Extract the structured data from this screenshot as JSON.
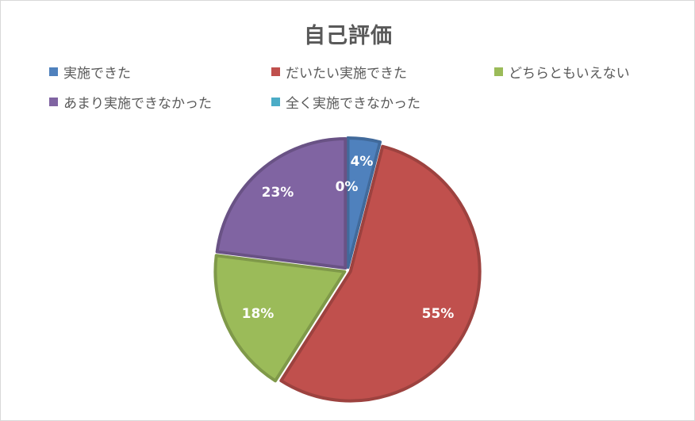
{
  "chart_data": {
    "type": "pie",
    "title": "自己評価",
    "legend_position": "top",
    "categories": [
      "実施できた",
      "だいたい実施できた",
      "どちらともいえない",
      "あまり実施できなかった",
      "全く実施できなかった"
    ],
    "values": [
      4,
      55,
      18,
      23,
      0
    ],
    "labels": [
      "4%",
      "55%",
      "18%",
      "23%",
      "0%"
    ],
    "colors": [
      "#4f81bd",
      "#c0504d",
      "#9bbb59",
      "#8064a2",
      "#4bacc6"
    ]
  }
}
